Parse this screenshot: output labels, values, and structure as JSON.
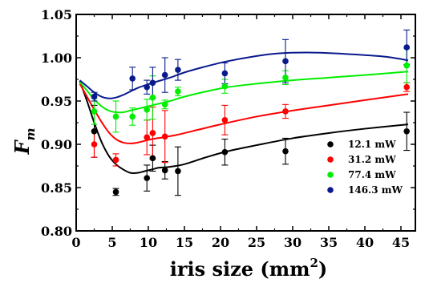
{
  "chart_data": {
    "type": "scatter",
    "xlabel": "iris size (mm",
    "xlabel_sup": "2",
    "xlabel_close": ")",
    "ylabel": "F",
    "ylabel_sub": "m",
    "xlim": [
      0,
      47
    ],
    "ylim": [
      0.8,
      1.05
    ],
    "xticks": [
      "0",
      "5",
      "10",
      "15",
      "20",
      "25",
      "30",
      "35",
      "40",
      "45"
    ],
    "yticks": [
      "0.80",
      "0.85",
      "0.90",
      "0.95",
      "1.00",
      "1.05"
    ],
    "legend_position": "right",
    "series": [
      {
        "name": "12.1 mW",
        "color": "#000000",
        "points": [
          {
            "x": 2.5,
            "y": 0.915,
            "err": 0.03
          },
          {
            "x": 5.5,
            "y": 0.845,
            "err": 0.004
          },
          {
            "x": 9.8,
            "y": 0.861,
            "err": 0.015
          },
          {
            "x": 10.6,
            "y": 0.884,
            "err": 0.015
          },
          {
            "x": 12.3,
            "y": 0.87,
            "err": 0.01
          },
          {
            "x": 14.1,
            "y": 0.869,
            "err": 0.028
          },
          {
            "x": 20.6,
            "y": 0.891,
            "err": 0.015
          },
          {
            "x": 29.0,
            "y": 0.892,
            "err": 0.015
          },
          {
            "x": 45.8,
            "y": 0.915,
            "err": 0.022
          }
        ],
        "curve": [
          [
            0.5,
            0.973
          ],
          [
            1.5,
            0.95
          ],
          [
            2.5,
            0.925
          ],
          [
            3.5,
            0.903
          ],
          [
            4.5,
            0.887
          ],
          [
            5.5,
            0.877
          ],
          [
            6.5,
            0.871
          ],
          [
            7.5,
            0.867
          ],
          [
            8.5,
            0.867
          ],
          [
            9.5,
            0.869
          ],
          [
            10.5,
            0.871
          ],
          [
            11.5,
            0.873
          ],
          [
            13,
            0.874
          ],
          [
            15,
            0.877
          ],
          [
            18,
            0.885
          ],
          [
            21,
            0.892
          ],
          [
            25,
            0.899
          ],
          [
            30,
            0.907
          ],
          [
            35,
            0.913
          ],
          [
            40,
            0.918
          ],
          [
            46,
            0.923
          ]
        ]
      },
      {
        "name": "31.2 mW",
        "color": "#ff0000",
        "points": [
          {
            "x": 2.5,
            "y": 0.9,
            "err": 0.015
          },
          {
            "x": 5.5,
            "y": 0.882,
            "err": 0.007
          },
          {
            "x": 9.8,
            "y": 0.908,
            "err": 0.02
          },
          {
            "x": 10.6,
            "y": 0.913,
            "err": 0.03
          },
          {
            "x": 12.3,
            "y": 0.909,
            "err": 0.03
          },
          {
            "x": 20.6,
            "y": 0.928,
            "err": 0.017
          },
          {
            "x": 29.0,
            "y": 0.938,
            "err": 0.008
          },
          {
            "x": 45.8,
            "y": 0.966,
            "err": 0.005
          }
        ],
        "curve": [
          [
            0.5,
            0.97
          ],
          [
            1.5,
            0.955
          ],
          [
            2.5,
            0.94
          ],
          [
            3.5,
            0.926
          ],
          [
            4.5,
            0.914
          ],
          [
            5.5,
            0.906
          ],
          [
            6.5,
            0.902
          ],
          [
            7.5,
            0.901
          ],
          [
            8.5,
            0.902
          ],
          [
            9.5,
            0.904
          ],
          [
            10.5,
            0.906
          ],
          [
            12,
            0.908
          ],
          [
            14,
            0.911
          ],
          [
            17,
            0.917
          ],
          [
            20,
            0.923
          ],
          [
            25,
            0.932
          ],
          [
            30,
            0.939
          ],
          [
            35,
            0.945
          ],
          [
            40,
            0.951
          ],
          [
            46,
            0.958
          ]
        ]
      },
      {
        "name": "77.4 mW",
        "color": "#00ee00",
        "points": [
          {
            "x": 2.5,
            "y": 0.938,
            "err": 0.015
          },
          {
            "x": 5.5,
            "y": 0.932,
            "err": 0.018
          },
          {
            "x": 7.8,
            "y": 0.932,
            "err": 0.01
          },
          {
            "x": 9.8,
            "y": 0.94,
            "err": 0.012
          },
          {
            "x": 10.6,
            "y": 0.954,
            "err": 0.025
          },
          {
            "x": 12.3,
            "y": 0.946,
            "err": 0.005
          },
          {
            "x": 14.1,
            "y": 0.961,
            "err": 0.005
          },
          {
            "x": 20.6,
            "y": 0.967,
            "err": 0.008
          },
          {
            "x": 29.0,
            "y": 0.977,
            "err": 0.008
          },
          {
            "x": 45.8,
            "y": 0.991,
            "err": 0.02
          }
        ],
        "curve": [
          [
            0.5,
            0.972
          ],
          [
            1.5,
            0.962
          ],
          [
            2.5,
            0.952
          ],
          [
            3.5,
            0.944
          ],
          [
            4.5,
            0.939
          ],
          [
            5.5,
            0.937
          ],
          [
            6.5,
            0.937
          ],
          [
            7.5,
            0.939
          ],
          [
            8.5,
            0.941
          ],
          [
            9.5,
            0.943
          ],
          [
            11,
            0.946
          ],
          [
            13,
            0.95
          ],
          [
            15,
            0.955
          ],
          [
            18,
            0.961
          ],
          [
            21,
            0.966
          ],
          [
            25,
            0.97
          ],
          [
            30,
            0.974
          ],
          [
            35,
            0.977
          ],
          [
            40,
            0.98
          ],
          [
            46,
            0.984
          ]
        ]
      },
      {
        "name": "146.3 mW",
        "color": "#0a1a8c",
        "points": [
          {
            "x": 2.5,
            "y": 0.955,
            "err": 0.005
          },
          {
            "x": 7.8,
            "y": 0.976,
            "err": 0.013
          },
          {
            "x": 9.8,
            "y": 0.966,
            "err": 0.008
          },
          {
            "x": 10.6,
            "y": 0.971,
            "err": 0.018
          },
          {
            "x": 12.3,
            "y": 0.98,
            "err": 0.02
          },
          {
            "x": 14.1,
            "y": 0.986,
            "err": 0.012
          },
          {
            "x": 20.6,
            "y": 0.982,
            "err": 0.012
          },
          {
            "x": 29.0,
            "y": 0.996,
            "err": 0.025
          },
          {
            "x": 45.8,
            "y": 1.012,
            "err": 0.02
          }
        ],
        "curve": [
          [
            0.5,
            0.974
          ],
          [
            1.5,
            0.967
          ],
          [
            2.5,
            0.96
          ],
          [
            3.5,
            0.955
          ],
          [
            4.5,
            0.953
          ],
          [
            5.5,
            0.954
          ],
          [
            6.5,
            0.957
          ],
          [
            7.5,
            0.961
          ],
          [
            8.5,
            0.965
          ],
          [
            9.5,
            0.968
          ],
          [
            11,
            0.972
          ],
          [
            13,
            0.977
          ],
          [
            15,
            0.983
          ],
          [
            18,
            0.99
          ],
          [
            21,
            0.996
          ],
          [
            25,
            1.002
          ],
          [
            28,
            1.005
          ],
          [
            32,
            1.006
          ],
          [
            36,
            1.005
          ],
          [
            40,
            1.003
          ],
          [
            43,
            1.001
          ],
          [
            46,
            0.997
          ]
        ]
      }
    ]
  }
}
